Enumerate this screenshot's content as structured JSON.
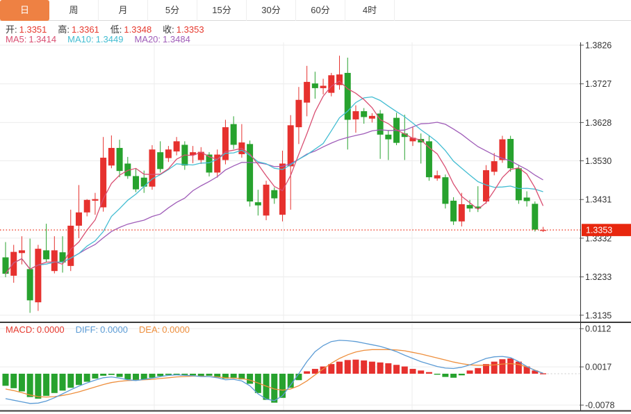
{
  "tabbar": {
    "items": [
      {
        "name": "day",
        "label": "日",
        "active": true
      },
      {
        "name": "week",
        "label": "周",
        "active": false
      },
      {
        "name": "month",
        "label": "月",
        "active": false
      },
      {
        "name": "5min",
        "label": "5分",
        "active": false
      },
      {
        "name": "15min",
        "label": "15分",
        "active": false
      },
      {
        "name": "30min",
        "label": "30分",
        "active": false
      },
      {
        "name": "60min",
        "label": "60分",
        "active": false
      },
      {
        "name": "4hour",
        "label": "4时",
        "active": false
      }
    ]
  },
  "ohlc_bar": {
    "open_label": "开:",
    "open_value": "1.3351",
    "high_label": "高:",
    "high_value": "1.3361",
    "low_label": "低:",
    "low_value": "1.3348",
    "close_label": "收:",
    "close_value": "1.3353"
  },
  "ma_bar": {
    "ma5_label": "MA5:",
    "ma5_value": "1.3414",
    "ma10_label": "MA10:",
    "ma10_value": "1.3449",
    "ma20_label": "MA20:",
    "ma20_value": "1.3484"
  },
  "macd_bar": {
    "macd_label": "MACD:",
    "macd_value": "0.0000",
    "diff_label": "DIFF:",
    "diff_value": "0.0000",
    "dea_label": "DEA:",
    "dea_value": "0.0000"
  },
  "colors": {
    "up": "#e6312e",
    "down": "#27a22e",
    "ma5": "#d94f72",
    "ma10": "#43bdd2",
    "ma20": "#9f5cb8",
    "diff_line": "#5b9bd5",
    "dea_line": "#ee8f3d",
    "accent_tab": "#ee8143",
    "price_tag_bg": "#e8270e",
    "price_tag_text": "#ffffff",
    "current_price_line": "#ee3b26",
    "value_red": "#e6392e",
    "axis_text": "#333333",
    "grid": "#ececec",
    "axis_line": "#2f2f2f",
    "panel_border": "#3a3a3a"
  },
  "chart_data": {
    "type": "candlestick",
    "title": "",
    "legend": [
      "MA5",
      "MA10",
      "MA20"
    ],
    "price_axis_ticks": [
      1.3826,
      1.3727,
      1.3628,
      1.353,
      1.3431,
      1.3332,
      1.3233,
      1.3135
    ],
    "current_price": 1.3353,
    "current_price_label": "1.3353",
    "ma_periods": [
      5,
      10,
      20
    ],
    "candles": [
      [
        1.3283,
        1.3322,
        1.3232,
        1.3241
      ],
      [
        1.3236,
        1.3315,
        1.3218,
        1.3297
      ],
      [
        1.3294,
        1.3337,
        1.3265,
        1.3301
      ],
      [
        1.3253,
        1.3331,
        1.3141,
        1.3173
      ],
      [
        1.3168,
        1.3315,
        1.3146,
        1.3305
      ],
      [
        1.3301,
        1.3369,
        1.3271,
        1.3278
      ],
      [
        1.3248,
        1.3337,
        1.3242,
        1.3301
      ],
      [
        1.3296,
        1.3337,
        1.3244,
        1.327
      ],
      [
        1.3261,
        1.3405,
        1.3248,
        1.3364
      ],
      [
        1.3364,
        1.3468,
        1.3332,
        1.3398
      ],
      [
        1.3398,
        1.3432,
        1.3388,
        1.343
      ],
      [
        1.3428,
        1.3448,
        1.3392,
        1.3432
      ],
      [
        1.3411,
        1.3591,
        1.34,
        1.3538
      ],
      [
        1.3518,
        1.3595,
        1.3511,
        1.3563
      ],
      [
        1.3563,
        1.3584,
        1.3488,
        1.3504
      ],
      [
        1.3523,
        1.354,
        1.3484,
        1.3491
      ],
      [
        1.3491,
        1.351,
        1.345,
        1.3457
      ],
      [
        1.3487,
        1.3505,
        1.3448,
        1.3464
      ],
      [
        1.3464,
        1.357,
        1.3456,
        1.3559
      ],
      [
        1.3552,
        1.358,
        1.35,
        1.3509
      ],
      [
        1.3537,
        1.3568,
        1.3527,
        1.3559
      ],
      [
        1.3554,
        1.3591,
        1.3544,
        1.358
      ],
      [
        1.3571,
        1.358,
        1.3507,
        1.3518
      ],
      [
        1.3545,
        1.3568,
        1.3524,
        1.3552
      ],
      [
        1.3532,
        1.3565,
        1.3522,
        1.3553
      ],
      [
        1.3546,
        1.3552,
        1.349,
        1.35
      ],
      [
        1.35,
        1.3559,
        1.3487,
        1.3546
      ],
      [
        1.3532,
        1.3635,
        1.3521,
        1.3616
      ],
      [
        1.3624,
        1.3644,
        1.356,
        1.3571
      ],
      [
        1.3547,
        1.3624,
        1.3538,
        1.3577
      ],
      [
        1.3573,
        1.3582,
        1.3413,
        1.3426
      ],
      [
        1.3424,
        1.3456,
        1.339,
        1.3416
      ],
      [
        1.339,
        1.3479,
        1.3378,
        1.3469
      ],
      [
        1.3455,
        1.3462,
        1.342,
        1.3434
      ],
      [
        1.3392,
        1.3556,
        1.3375,
        1.3523
      ],
      [
        1.3516,
        1.3647,
        1.3405,
        1.3621
      ],
      [
        1.3616,
        1.3719,
        1.3573,
        1.3686
      ],
      [
        1.3679,
        1.3773,
        1.3644,
        1.3732
      ],
      [
        1.3728,
        1.3758,
        1.3689,
        1.3716
      ],
      [
        1.3716,
        1.374,
        1.37,
        1.3722
      ],
      [
        1.3704,
        1.3755,
        1.3695,
        1.3749
      ],
      [
        1.3724,
        1.3799,
        1.3712,
        1.3751
      ],
      [
        1.3755,
        1.3794,
        1.3559,
        1.3635
      ],
      [
        1.3636,
        1.3672,
        1.3602,
        1.3657
      ],
      [
        1.3657,
        1.3665,
        1.3625,
        1.3642
      ],
      [
        1.3638,
        1.3652,
        1.3628,
        1.3645
      ],
      [
        1.3651,
        1.366,
        1.3535,
        1.3597
      ],
      [
        1.3597,
        1.3608,
        1.3532,
        1.3585
      ],
      [
        1.364,
        1.3653,
        1.357,
        1.3576
      ],
      [
        1.36,
        1.3648,
        1.3532,
        1.3591
      ],
      [
        1.358,
        1.3616,
        1.3568,
        1.3589
      ],
      [
        1.3586,
        1.36,
        1.3523,
        1.3577
      ],
      [
        1.358,
        1.3595,
        1.3479,
        1.3488
      ],
      [
        1.3485,
        1.3505,
        1.3479,
        1.3493
      ],
      [
        1.3488,
        1.3495,
        1.3408,
        1.342
      ],
      [
        1.3428,
        1.3437,
        1.3366,
        1.3375
      ],
      [
        1.3375,
        1.3448,
        1.3362,
        1.3419
      ],
      [
        1.3417,
        1.343,
        1.3399,
        1.3408
      ],
      [
        1.3413,
        1.3465,
        1.3399,
        1.3408
      ],
      [
        1.3426,
        1.3519,
        1.342,
        1.3506
      ],
      [
        1.3502,
        1.355,
        1.3493,
        1.3529
      ],
      [
        1.3532,
        1.3594,
        1.3525,
        1.3585
      ],
      [
        1.3586,
        1.3594,
        1.3502,
        1.3511
      ],
      [
        1.3511,
        1.352,
        1.342,
        1.3429
      ],
      [
        1.3436,
        1.3452,
        1.3413,
        1.3427
      ],
      [
        1.342,
        1.3426,
        1.3349,
        1.3354
      ],
      [
        1.3351,
        1.3361,
        1.3348,
        1.3353
      ]
    ],
    "macd": {
      "axis_ticks": [
        0.0112,
        0.0017,
        -0.0078
      ],
      "value_scale": 0.0001,
      "hist": [
        -30,
        -36,
        -44,
        -58,
        -62,
        -55,
        -48,
        -42,
        -35,
        -28,
        -20,
        -12,
        -5,
        -3,
        -8,
        -14,
        -17,
        -14,
        -10,
        -6,
        -3,
        -2,
        -3,
        -4,
        -6,
        -5,
        -8,
        -12,
        -10,
        -14,
        -25,
        -48,
        -65,
        -72,
        -60,
        -35,
        -16,
        6,
        12,
        18,
        24,
        30,
        34,
        35,
        33,
        30,
        28,
        26,
        22,
        18,
        12,
        8,
        4,
        -2,
        -8,
        -10,
        -4,
        8,
        14,
        24,
        30,
        36,
        38,
        30,
        18,
        8,
        1
      ],
      "diff": [
        -62,
        -66,
        -70,
        -74,
        -73,
        -68,
        -60,
        -50,
        -40,
        -31,
        -23,
        -16,
        -10,
        -8,
        -11,
        -15,
        -17,
        -14,
        -11,
        -7,
        -4,
        -3,
        -4,
        -5,
        -7,
        -7,
        -10,
        -15,
        -14,
        -18,
        -30,
        -50,
        -63,
        -67,
        -55,
        -28,
        0,
        30,
        55,
        70,
        80,
        83,
        82,
        80,
        76,
        72,
        68,
        62,
        55,
        46,
        38,
        30,
        24,
        18,
        14,
        13,
        16,
        22,
        30,
        38,
        42,
        43,
        40,
        30,
        18,
        8,
        1
      ],
      "dea": [
        -38,
        -42,
        -47,
        -53,
        -57,
        -58,
        -57,
        -54,
        -50,
        -45,
        -39,
        -33,
        -27,
        -22,
        -19,
        -17,
        -16,
        -15,
        -14,
        -12,
        -10,
        -8,
        -7,
        -6,
        -6,
        -7,
        -8,
        -10,
        -11,
        -12,
        -16,
        -23,
        -31,
        -38,
        -41,
        -38,
        -30,
        -18,
        -3,
        12,
        26,
        38,
        47,
        54,
        58,
        60,
        60,
        60,
        59,
        57,
        53,
        49,
        44,
        39,
        34,
        29,
        25,
        22,
        21,
        21,
        22,
        24,
        25,
        23,
        17,
        9,
        1
      ]
    }
  }
}
